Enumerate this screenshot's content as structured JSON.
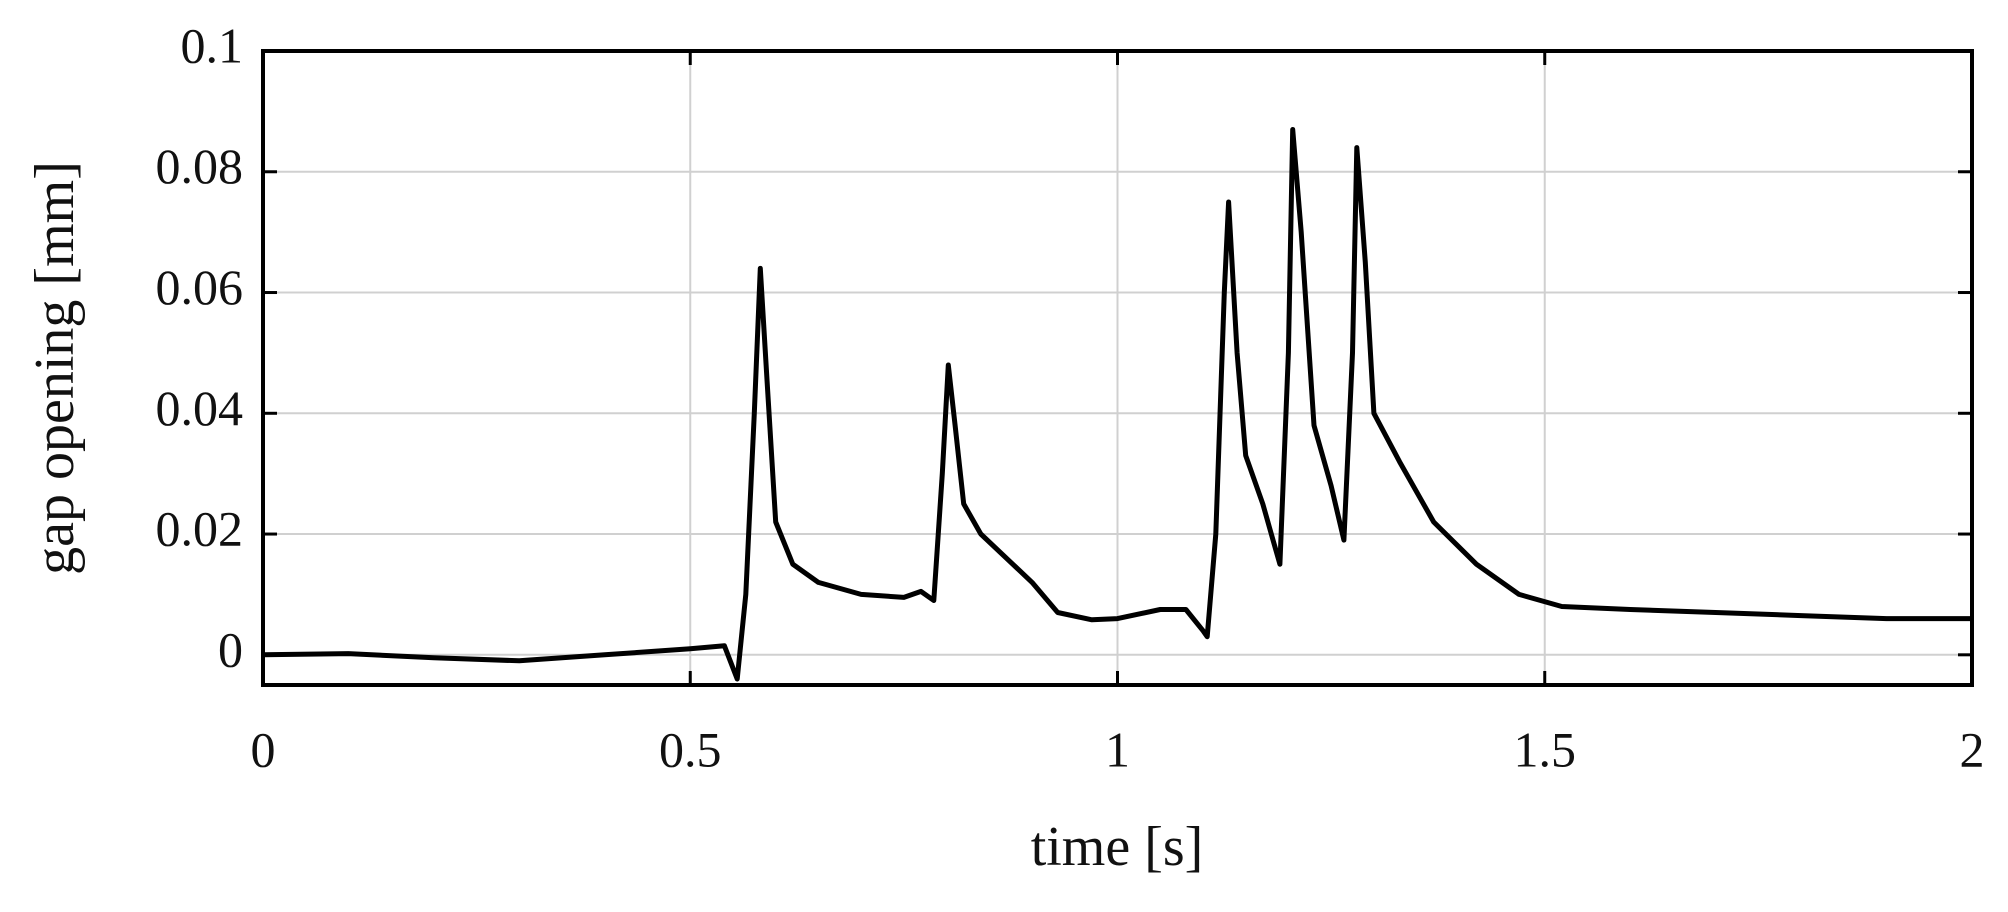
{
  "chart_data": {
    "type": "line",
    "xlabel": "time [s]",
    "ylabel": "gap opening [mm]",
    "xlim": [
      0,
      2
    ],
    "xticks": [
      0,
      0.5,
      1,
      1.5,
      2
    ],
    "ylim": [
      -0.005,
      0.1
    ],
    "yticks": [
      0,
      0.02,
      0.04,
      0.06,
      0.08,
      0.1
    ],
    "grid": true,
    "series": [
      {
        "name": "gap opening",
        "color": "#000000",
        "x": [
          0,
          0.1,
          0.2,
          0.3,
          0.4,
          0.5,
          0.54,
          0.555,
          0.565,
          0.575,
          0.582,
          0.59,
          0.6,
          0.62,
          0.65,
          0.7,
          0.75,
          0.77,
          0.785,
          0.795,
          0.802,
          0.81,
          0.82,
          0.84,
          0.87,
          0.9,
          0.93,
          0.97,
          1.0,
          1.05,
          1.08,
          1.1,
          1.105,
          1.115,
          1.125,
          1.13,
          1.14,
          1.15,
          1.17,
          1.18,
          1.19,
          1.2,
          1.205,
          1.215,
          1.23,
          1.25,
          1.265,
          1.275,
          1.28,
          1.29,
          1.3,
          1.33,
          1.37,
          1.42,
          1.47,
          1.52,
          1.6,
          1.7,
          1.8,
          1.9,
          2.0
        ],
        "values": [
          0.0,
          0.0002,
          -0.0005,
          -0.001,
          0.0,
          0.001,
          0.0015,
          -0.004,
          0.01,
          0.04,
          0.064,
          0.045,
          0.022,
          0.015,
          0.012,
          0.01,
          0.0095,
          0.0105,
          0.009,
          0.03,
          0.048,
          0.038,
          0.025,
          0.02,
          0.016,
          0.012,
          0.007,
          0.0058,
          0.006,
          0.0075,
          0.0075,
          0.004,
          0.003,
          0.02,
          0.06,
          0.075,
          0.05,
          0.033,
          0.025,
          0.02,
          0.015,
          0.05,
          0.087,
          0.07,
          0.038,
          0.028,
          0.019,
          0.05,
          0.084,
          0.065,
          0.04,
          0.032,
          0.022,
          0.015,
          0.01,
          0.008,
          0.0075,
          0.007,
          0.0065,
          0.006,
          0.006
        ]
      }
    ]
  }
}
